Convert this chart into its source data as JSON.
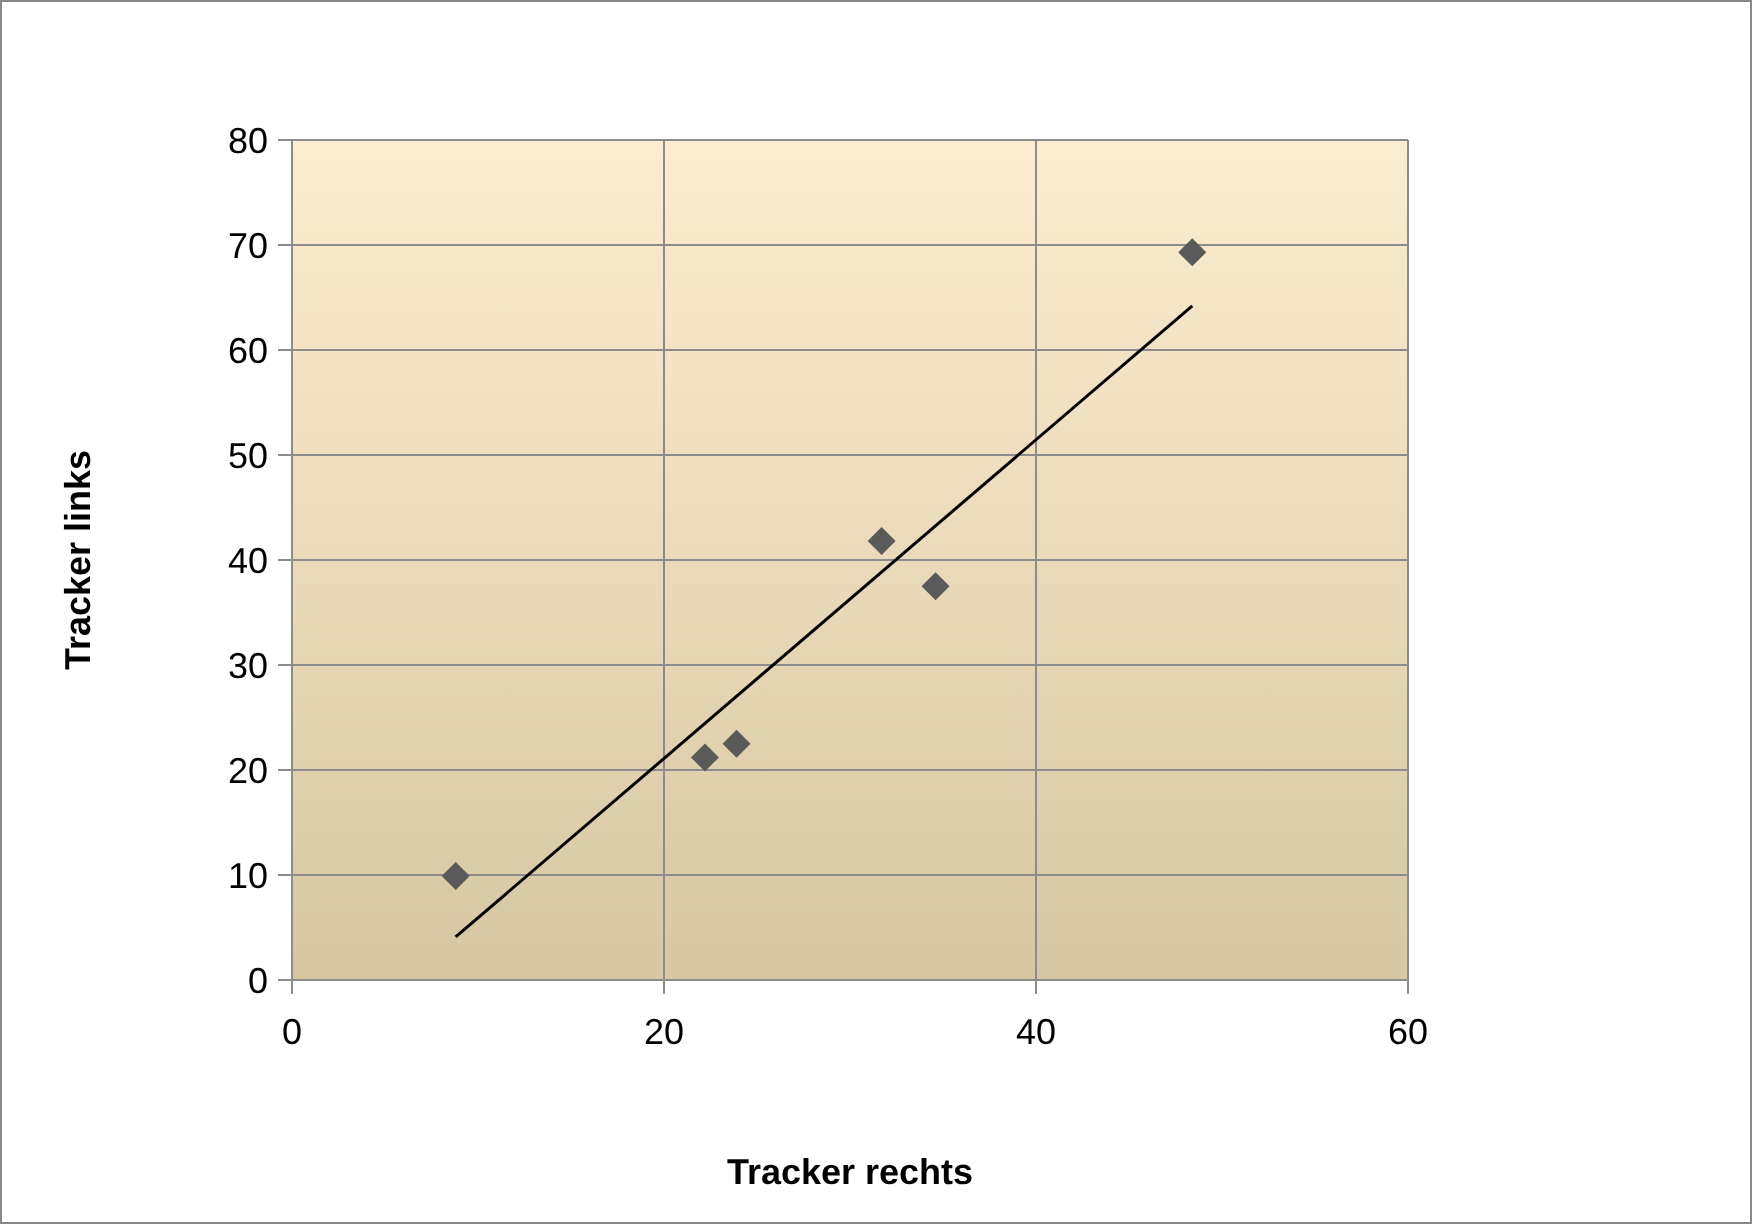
{
  "chart_data": {
    "type": "scatter",
    "xlabel": "Tracker rechts",
    "ylabel": "Tracker links",
    "xlim": [
      0,
      60
    ],
    "xticks": [
      0,
      20,
      40,
      60
    ],
    "ylim": [
      0,
      80
    ],
    "yticks": [
      0,
      10,
      20,
      30,
      40,
      50,
      60,
      70,
      80
    ],
    "grid": true,
    "series": [
      {
        "marker": "diamond",
        "color": "#5a5a5a",
        "x": [
          8.8,
          22.2,
          23.9,
          31.7,
          34.6,
          48.4
        ],
        "values": [
          9.9,
          21.2,
          22.5,
          41.8,
          37.5,
          69.3
        ]
      },
      {
        "type": "line",
        "color": "#000000",
        "x": [
          8.8,
          48.4
        ],
        "values": [
          4.1,
          64.2
        ]
      }
    ]
  }
}
